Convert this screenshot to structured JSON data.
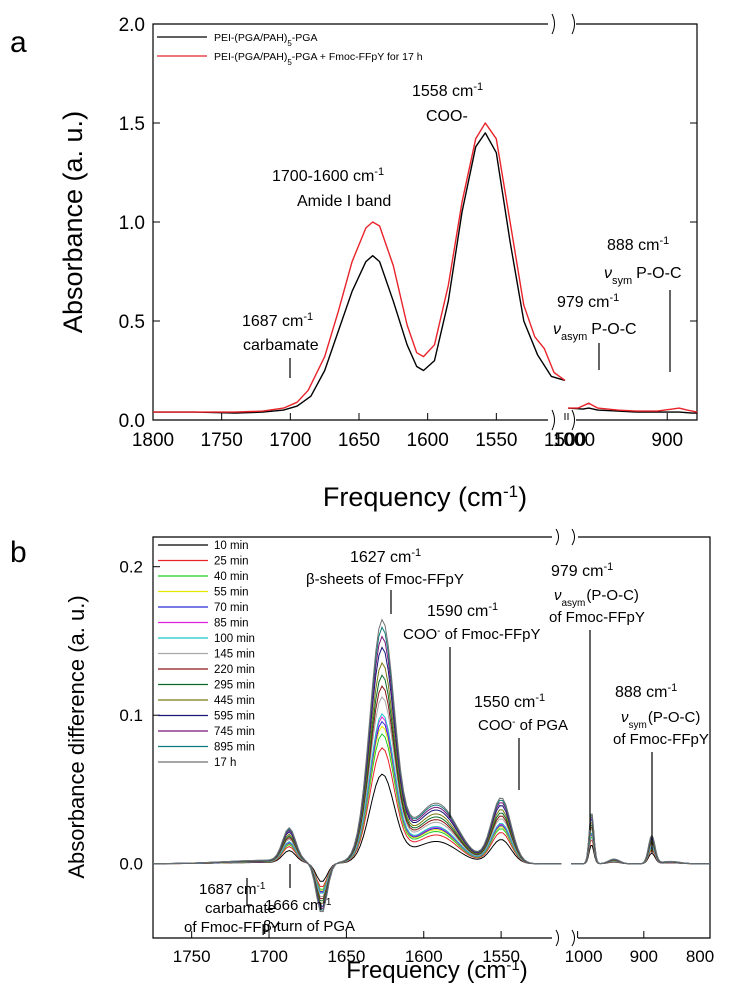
{
  "figure": {
    "panel_a_letter": "a",
    "panel_b_letter": "b"
  },
  "chart_data": [
    {
      "type": "line",
      "panel": "a",
      "xlabel": "Frequency (cm-1)",
      "ylabel": "Absorbance (a. u.)",
      "ylim": [
        0,
        2.0
      ],
      "x_segments": [
        [
          1800,
          1500
        ],
        [
          1000,
          870
        ]
      ],
      "x_ticks_left": [
        "1800",
        "1750",
        "1700",
        "1650",
        "1600",
        "1550",
        "1500"
      ],
      "x_ticks_right": [
        "1000",
        "900"
      ],
      "y_ticks": [
        "0.0",
        "0.5",
        "1.0",
        "1.5",
        "2.0"
      ],
      "legend_placement": "top-left",
      "series": [
        {
          "name": "PEI-(PGA/PAH)5-PGA",
          "color": "#000000",
          "points_left": [
            [
              1800,
              0.04
            ],
            [
              1770,
              0.04
            ],
            [
              1740,
              0.035
            ],
            [
              1720,
              0.04
            ],
            [
              1705,
              0.05
            ],
            [
              1695,
              0.07
            ],
            [
              1685,
              0.12
            ],
            [
              1675,
              0.25
            ],
            [
              1665,
              0.45
            ],
            [
              1655,
              0.65
            ],
            [
              1645,
              0.8
            ],
            [
              1640,
              0.83
            ],
            [
              1635,
              0.8
            ],
            [
              1625,
              0.6
            ],
            [
              1615,
              0.38
            ],
            [
              1608,
              0.27
            ],
            [
              1603,
              0.25
            ],
            [
              1595,
              0.3
            ],
            [
              1585,
              0.6
            ],
            [
              1575,
              1.05
            ],
            [
              1565,
              1.38
            ],
            [
              1558,
              1.45
            ],
            [
              1550,
              1.35
            ],
            [
              1540,
              0.9
            ],
            [
              1530,
              0.5
            ],
            [
              1520,
              0.33
            ],
            [
              1510,
              0.22
            ],
            [
              1500,
              0.2
            ]
          ],
          "points_right": [
            [
              1000,
              0.06
            ],
            [
              985,
              0.055
            ],
            [
              979,
              0.06
            ],
            [
              970,
              0.05
            ],
            [
              950,
              0.045
            ],
            [
              930,
              0.04
            ],
            [
              910,
              0.04
            ],
            [
              888,
              0.04
            ],
            [
              875,
              0.035
            ],
            [
              870,
              0.035
            ]
          ]
        },
        {
          "name": "PEI-(PGA/PAH)5-PGA + Fmoc-FFpY for 17 h",
          "color": "#e8232a",
          "points_left": [
            [
              1800,
              0.04
            ],
            [
              1770,
              0.04
            ],
            [
              1740,
              0.04
            ],
            [
              1720,
              0.045
            ],
            [
              1705,
              0.06
            ],
            [
              1695,
              0.09
            ],
            [
              1687,
              0.15
            ],
            [
              1675,
              0.32
            ],
            [
              1665,
              0.55
            ],
            [
              1655,
              0.8
            ],
            [
              1645,
              0.97
            ],
            [
              1640,
              1.0
            ],
            [
              1635,
              0.98
            ],
            [
              1625,
              0.78
            ],
            [
              1615,
              0.48
            ],
            [
              1608,
              0.34
            ],
            [
              1603,
              0.32
            ],
            [
              1595,
              0.38
            ],
            [
              1585,
              0.68
            ],
            [
              1575,
              1.1
            ],
            [
              1565,
              1.42
            ],
            [
              1558,
              1.5
            ],
            [
              1550,
              1.42
            ],
            [
              1540,
              1.0
            ],
            [
              1530,
              0.58
            ],
            [
              1522,
              0.42
            ],
            [
              1515,
              0.36
            ],
            [
              1508,
              0.24
            ],
            [
              1500,
              0.2
            ]
          ],
          "points_right": [
            [
              1000,
              0.06
            ],
            [
              990,
              0.06
            ],
            [
              979,
              0.085
            ],
            [
              970,
              0.06
            ],
            [
              950,
              0.05
            ],
            [
              930,
              0.045
            ],
            [
              910,
              0.045
            ],
            [
              895,
              0.055
            ],
            [
              888,
              0.06
            ],
            [
              880,
              0.05
            ],
            [
              870,
              0.04
            ]
          ]
        }
      ],
      "annotations": [
        {
          "line1": "1558 cm",
          "sup": "-1",
          "line2": "COO-"
        },
        {
          "line1": "1700-1600 cm",
          "sup": "-1",
          "line2": "Amide I band"
        },
        {
          "line1": "1687 cm",
          "sup": "-1",
          "line2": "carbamate"
        },
        {
          "line1": "888 cm",
          "sup": "-1",
          "line2": "P-O-C",
          "greek": "ν",
          "sub": "sym"
        },
        {
          "line1": "979 cm",
          "sup": "-1",
          "line2": "P-O-C",
          "greek": "ν",
          "sub": "asym"
        }
      ]
    },
    {
      "type": "line",
      "panel": "b",
      "xlabel": "Frequency (cm-1)",
      "ylabel": "Absorbance difference (a. u.)",
      "ylim": [
        -0.05,
        0.22
      ],
      "x_segments": [
        [
          1775,
          1510
        ],
        [
          1010,
          800
        ]
      ],
      "x_ticks_left": [
        "1750",
        "1700",
        "1650",
        "1600",
        "1550"
      ],
      "x_ticks_right": [
        "1000",
        "900",
        "800"
      ],
      "y_ticks": [
        "0.0",
        "0.1",
        "0.2"
      ],
      "legend_placement": "top-left",
      "series": [
        {
          "name": "10 min",
          "color": "#000000",
          "peak": 0.058
        },
        {
          "name": "25 min",
          "color": "#e8232a",
          "peak": 0.075
        },
        {
          "name": "40 min",
          "color": "#22cc22",
          "peak": 0.084
        },
        {
          "name": "55 min",
          "color": "#e6e600",
          "peak": 0.089
        },
        {
          "name": "70 min",
          "color": "#2a2ad4",
          "peak": 0.092
        },
        {
          "name": "85 min",
          "color": "#e020e0",
          "peak": 0.095
        },
        {
          "name": "100 min",
          "color": "#18c8c8",
          "peak": 0.097
        },
        {
          "name": "145 min",
          "color": "#a8a8a8",
          "peak": 0.108
        },
        {
          "name": "220 min",
          "color": "#8b1515",
          "peak": 0.115
        },
        {
          "name": "295 min",
          "color": "#0b6b2b",
          "peak": 0.122
        },
        {
          "name": "445 min",
          "color": "#7a7a10",
          "peak": 0.13
        },
        {
          "name": "595 min",
          "color": "#15157a",
          "peak": 0.14
        },
        {
          "name": "745 min",
          "color": "#7a157a",
          "peak": 0.147
        },
        {
          "name": "895 min",
          "color": "#0f7a7a",
          "peak": 0.153
        },
        {
          "name": "17 h",
          "color": "#707070",
          "peak": 0.158
        }
      ],
      "annotations": [
        {
          "line1": "1627 cm",
          "sup": "-1",
          "line2": "β-sheets of Fmoc-FFpY"
        },
        {
          "line1": "1590 cm",
          "sup": "-1",
          "line2": "COO",
          "sup2": "-",
          "line2b": " of Fmoc-FFpY"
        },
        {
          "line1": "1550 cm",
          "sup": "-1",
          "line2": "COO",
          "sup2": "-",
          "line2b": " of PGA"
        },
        {
          "line1": "979 cm",
          "sup": "-1",
          "greek": "ν",
          "sub": "asym",
          "line2": "(P-O-C)",
          "line3": "of Fmoc-FFpY"
        },
        {
          "line1": "888 cm",
          "sup": "-1",
          "greek": "ν",
          "sub": "sym",
          "line2": "(P-O-C)",
          "line3": "of Fmoc-FFpY"
        },
        {
          "line1": "1687 cm",
          "sup": "-1",
          "line2": "carbamate",
          "line3": "of Fmoc-FFpY"
        },
        {
          "line1": "1666 cm",
          "sup": "-1",
          "line2": "β-turn of PGA"
        }
      ]
    }
  ]
}
